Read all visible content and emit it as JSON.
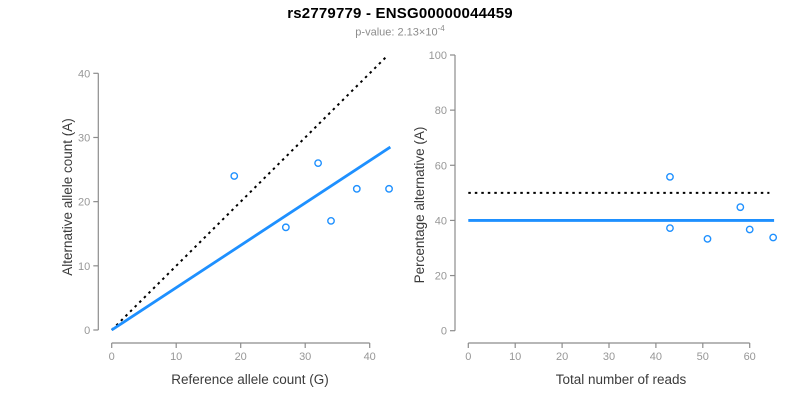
{
  "header": {
    "title": "rs2779779 - ENSG00000044459",
    "subtitle_prefix": "p-value: 2.13×10",
    "subtitle_exponent": "-4"
  },
  "colors": {
    "accent_blue": "#1E90FF",
    "dotted_line_black": "#000000",
    "axis_gray": "#8c8c8c",
    "tick_label_gray": "#979797",
    "axis_title_color": "#3b3b3b",
    "subtitle_gray": "#8c8c8c",
    "background": "#ffffff"
  },
  "chart_data": [
    {
      "id": "allele-count-scatter",
      "type": "scatter",
      "xlabel": "Reference allele count (G)",
      "ylabel": "Alternative allele count (A)",
      "xlim": [
        0,
        40
      ],
      "ylim": [
        0,
        40
      ],
      "xticks": [
        0,
        10,
        20,
        30,
        40
      ],
      "yticks": [
        0,
        10,
        20,
        30,
        40
      ],
      "grid": false,
      "points": [
        [
          19,
          24
        ],
        [
          27,
          16
        ],
        [
          32,
          26
        ],
        [
          34,
          17
        ],
        [
          38,
          22
        ],
        [
          43,
          22
        ]
      ],
      "lines": [
        {
          "name": "identity-line",
          "style": "dotted",
          "color": "#000000",
          "x1": 0,
          "y1": 0,
          "x2": 42.8,
          "y2": 42.8
        },
        {
          "name": "expected-ratio-line",
          "style": "solid",
          "color": "#1E90FF",
          "x1": 0,
          "y1": 0,
          "x2": 43.2,
          "y2": 28.5
        }
      ]
    },
    {
      "id": "percentage-reads-scatter",
      "type": "scatter",
      "xlabel": "Total number of reads",
      "ylabel": "Percentage alternative (A)",
      "xlim": [
        0,
        60
      ],
      "ylim": [
        0,
        100
      ],
      "xticks": [
        0,
        10,
        20,
        30,
        40,
        50,
        60
      ],
      "yticks": [
        0,
        20,
        40,
        60,
        80,
        100
      ],
      "grid": false,
      "points": [
        [
          43,
          55.8
        ],
        [
          43,
          37.2
        ],
        [
          51,
          33.3
        ],
        [
          58,
          44.8
        ],
        [
          60,
          36.7
        ],
        [
          65,
          33.8
        ]
      ],
      "lines": [
        {
          "name": "fifty-percent-line",
          "style": "dotted",
          "color": "#000000",
          "x1": 0,
          "y1": 50,
          "x2": 64.2,
          "y2": 50
        },
        {
          "name": "mean-percentage-line",
          "style": "solid",
          "color": "#1E90FF",
          "x1": 0,
          "y1": 40,
          "x2": 65.2,
          "y2": 40
        }
      ]
    }
  ]
}
